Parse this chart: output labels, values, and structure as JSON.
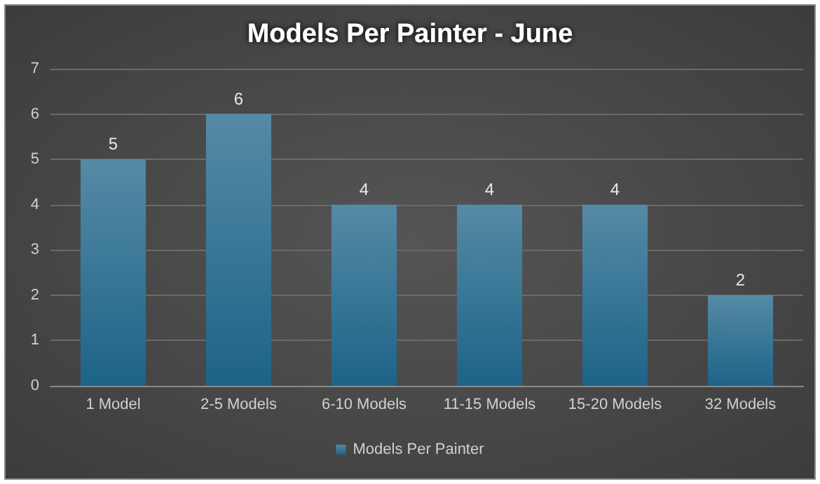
{
  "chart_data": {
    "type": "bar",
    "title": "Models Per Painter - June",
    "categories": [
      "1 Model",
      "2-5 Models",
      "6-10 Models",
      "11-15 Models",
      "15-20 Models",
      "32 Models"
    ],
    "series": [
      {
        "name": "Models Per Painter",
        "color": "#1d6388",
        "values": [
          5,
          6,
          4,
          4,
          4,
          2
        ]
      }
    ],
    "ylim": [
      0,
      7
    ],
    "yticks": [
      0,
      1,
      2,
      3,
      4,
      5,
      6,
      7
    ],
    "grid": "y",
    "legend": "bottom",
    "data_labels": true
  }
}
